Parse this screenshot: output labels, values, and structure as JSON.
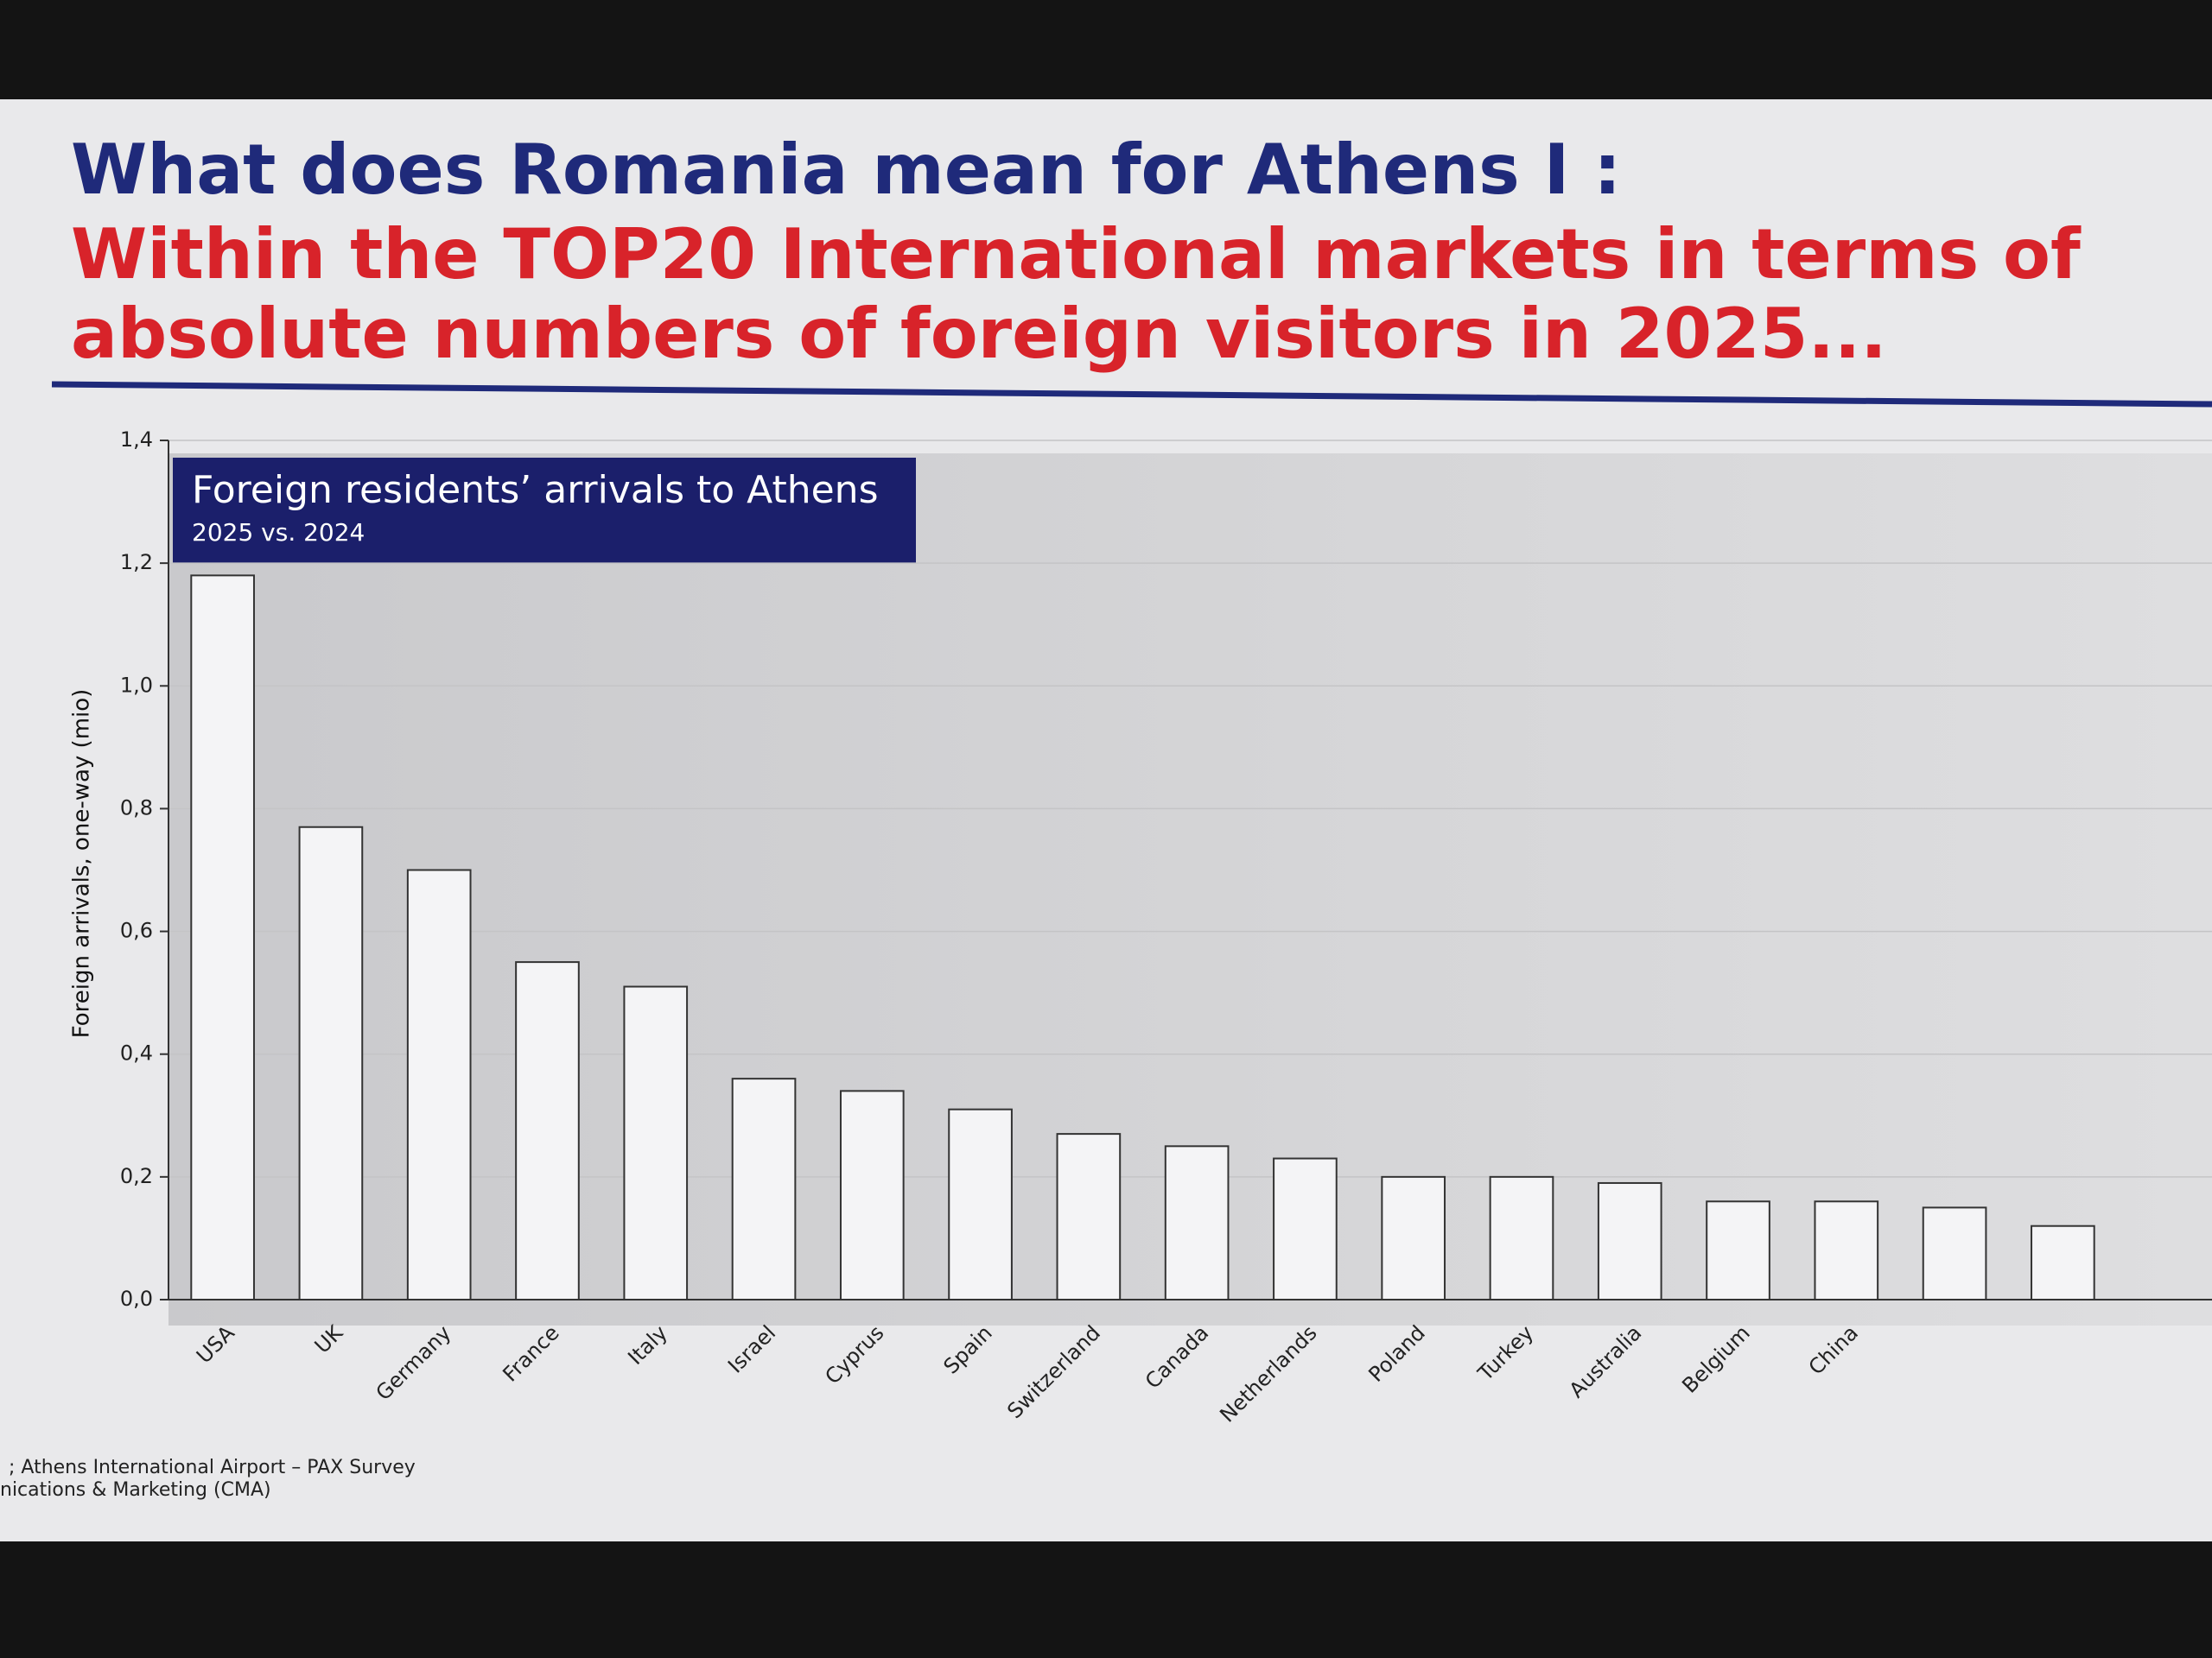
{
  "slide": {
    "heading": "What does Romania mean for Athens I :",
    "subheading": [
      "Within the TOP20 International markets in terms of",
      "absolute numbers of foreign visitors in 2025..."
    ],
    "source": [
      "; Athens International Airport – PAX Survey",
      "nications & Marketing (CMA)"
    ]
  },
  "chart_data": {
    "type": "bar",
    "title": "Foreign residents’ arrivals to Athens",
    "subtitle": "2025 vs. 2024",
    "y_label": "Foreign arrivals, one-way (mio)",
    "categories": [
      "USA",
      "UK",
      "Germany",
      "France",
      "Italy",
      "Israel",
      "Cyprus",
      "Spain",
      "Switzerland",
      "Canada",
      "Netherlands",
      "Poland",
      "Turkey",
      "Australia",
      "Belgium",
      "China",
      null,
      null
    ],
    "values": [
      1.18,
      0.77,
      0.7,
      0.55,
      0.51,
      0.36,
      0.34,
      0.31,
      0.27,
      0.25,
      0.23,
      0.2,
      0.2,
      0.19,
      0.16,
      0.16,
      0.15,
      0.12
    ],
    "color": "#f4f4f6",
    "ylim": [
      0,
      1.4
    ],
    "yticks": [
      {
        "value": 0,
        "label": "0,0"
      },
      {
        "value": 0.2,
        "label": "0,2"
      },
      {
        "value": 0.4,
        "label": "0,4"
      },
      {
        "value": 0.6,
        "label": "0,6"
      },
      {
        "value": 0.8,
        "label": "0,8"
      },
      {
        "value": 1.0,
        "label": "1,0"
      },
      {
        "value": 1.2,
        "label": "1,2"
      },
      {
        "value": 1.4,
        "label": "1,4"
      }
    ],
    "grid": true
  }
}
